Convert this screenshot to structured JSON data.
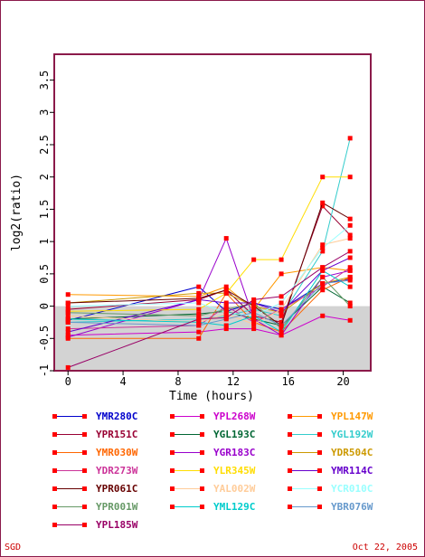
{
  "chart_data": {
    "type": "line",
    "xlabel": "Time (hours)",
    "ylabel": "log2(ratio)",
    "xlim": [
      -1,
      22
    ],
    "ylim": [
      -1,
      3.9
    ],
    "x_ticks": [
      0,
      4,
      8,
      12,
      16,
      20
    ],
    "y_ticks": [
      -1,
      -0.5,
      0,
      0.5,
      1,
      1.5,
      2,
      2.5,
      3,
      3.5
    ],
    "x": [
      0,
      9.5,
      11.5,
      13.5,
      15.5,
      18.5,
      20.5
    ],
    "shaded_region_below_y": 0,
    "series": [
      {
        "name": "YMR280C",
        "color": "#0000cc",
        "values": [
          -0.22,
          0.3,
          -0.08,
          0.05,
          -0.05,
          0.35,
          0.42
        ]
      },
      {
        "name": "YPL268W",
        "color": "#cc00cc",
        "values": [
          -0.45,
          -0.4,
          -0.35,
          -0.35,
          -0.45,
          -0.15,
          -0.22
        ]
      },
      {
        "name": "YPL147W",
        "color": "#ff9900",
        "values": [
          0.18,
          0.15,
          0.3,
          -0.05,
          0.5,
          0.6,
          0.55
        ]
      },
      {
        "name": "YPR151C",
        "color": "#990033",
        "values": [
          -0.05,
          0.1,
          0.25,
          -0.15,
          -0.25,
          1.55,
          1.1
        ]
      },
      {
        "name": "YGL193C",
        "color": "#006633",
        "values": [
          -0.2,
          -0.12,
          -0.08,
          -0.2,
          -0.3,
          0.3,
          0.05
        ]
      },
      {
        "name": "YGL192W",
        "color": "#33cccc",
        "values": [
          -0.25,
          -0.2,
          -0.15,
          -0.05,
          -0.15,
          0.85,
          2.6
        ]
      },
      {
        "name": "YMR030W",
        "color": "#ff6600",
        "values": [
          -0.5,
          -0.5,
          0.2,
          -0.25,
          -0.4,
          0.25,
          0.45
        ]
      },
      {
        "name": "YGR183C",
        "color": "#9900cc",
        "values": [
          -0.48,
          0.1,
          1.05,
          -0.2,
          -0.45,
          0.45,
          0.55
        ]
      },
      {
        "name": "YDR504C",
        "color": "#cc9900",
        "values": [
          0.05,
          0.2,
          0.2,
          0.0,
          -0.1,
          0.35,
          0.45
        ]
      },
      {
        "name": "YDR273W",
        "color": "#cc3399",
        "values": [
          -0.35,
          -0.3,
          0.0,
          -0.25,
          -0.05,
          0.3,
          0.6
        ]
      },
      {
        "name": "YLR345W",
        "color": "#ffdd00",
        "values": [
          -0.08,
          -0.05,
          0.2,
          0.72,
          0.72,
          2.0,
          2.0
        ]
      },
      {
        "name": "YMR114C",
        "color": "#6600cc",
        "values": [
          -0.4,
          0.1,
          0.05,
          0.05,
          -0.1,
          0.55,
          0.75
        ]
      },
      {
        "name": "YPR061C",
        "color": "#660000",
        "values": [
          0.05,
          0.12,
          0.25,
          0.0,
          -0.3,
          1.6,
          1.35
        ]
      },
      {
        "name": "YAL002W",
        "color": "#ffcc99",
        "values": [
          -0.15,
          -0.25,
          -0.12,
          -0.28,
          -0.05,
          0.95,
          1.05
        ]
      },
      {
        "name": "YCR010C",
        "color": "#99ffff",
        "values": [
          0.0,
          0.05,
          -0.1,
          -0.15,
          0.05,
          0.9,
          1.25
        ]
      },
      {
        "name": "YPR001W",
        "color": "#669966",
        "values": [
          -0.1,
          -0.15,
          -0.05,
          0.05,
          -0.35,
          0.45,
          0.0
        ]
      },
      {
        "name": "YML129C",
        "color": "#00cccc",
        "values": [
          -0.2,
          -0.25,
          -0.3,
          -0.15,
          -0.4,
          0.55,
          0.3
        ]
      },
      {
        "name": "YBR076W",
        "color": "#6699cc",
        "values": [
          -0.25,
          -0.3,
          -0.2,
          -0.1,
          -0.3,
          0.35,
          0.4
        ]
      },
      {
        "name": "YPL185W",
        "color": "#990066",
        "values": [
          -0.95,
          -0.2,
          -0.18,
          0.1,
          0.15,
          0.6,
          0.85
        ]
      }
    ]
  },
  "footer": {
    "left": "SGD",
    "right": "Oct 22, 2005"
  }
}
